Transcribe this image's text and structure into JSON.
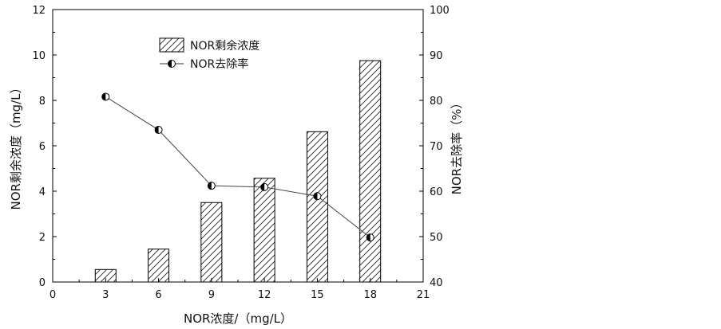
{
  "chart_data": {
    "type": "bar",
    "x_ticks": [
      "0",
      "3",
      "6",
      "9",
      "12",
      "15",
      "18",
      "21"
    ],
    "xlim": [
      0,
      21
    ],
    "xlabel": "NOR浓度/（mg/L）",
    "y_left": {
      "label": "NOR剩余浓度（mg/L）",
      "lim": [
        0,
        12
      ],
      "ticks": [
        "0",
        "2",
        "4",
        "6",
        "8",
        "10",
        "12"
      ]
    },
    "y_right": {
      "label": "NOR去除率（%）",
      "lim": [
        40,
        100
      ],
      "ticks": [
        "40",
        "50",
        "60",
        "70",
        "80",
        "90",
        "100"
      ]
    },
    "series": [
      {
        "name": "NOR剩余浓度",
        "kind": "bar",
        "axis": "left",
        "style": "hatched",
        "x": [
          3,
          6,
          9,
          12,
          15,
          18
        ],
        "values": [
          0.55,
          1.45,
          3.5,
          4.57,
          6.62,
          9.75
        ]
      },
      {
        "name": "NOR去除率",
        "kind": "line",
        "axis": "right",
        "marker": "half-filled circle",
        "x": [
          3,
          6,
          9,
          12,
          15,
          18
        ],
        "values": [
          80.8,
          73.5,
          61.2,
          60.9,
          58.9,
          49.8
        ]
      }
    ],
    "legend": {
      "position": "top-center",
      "items": [
        "NOR剩余浓度",
        "NOR去除率"
      ]
    },
    "grid": false
  }
}
